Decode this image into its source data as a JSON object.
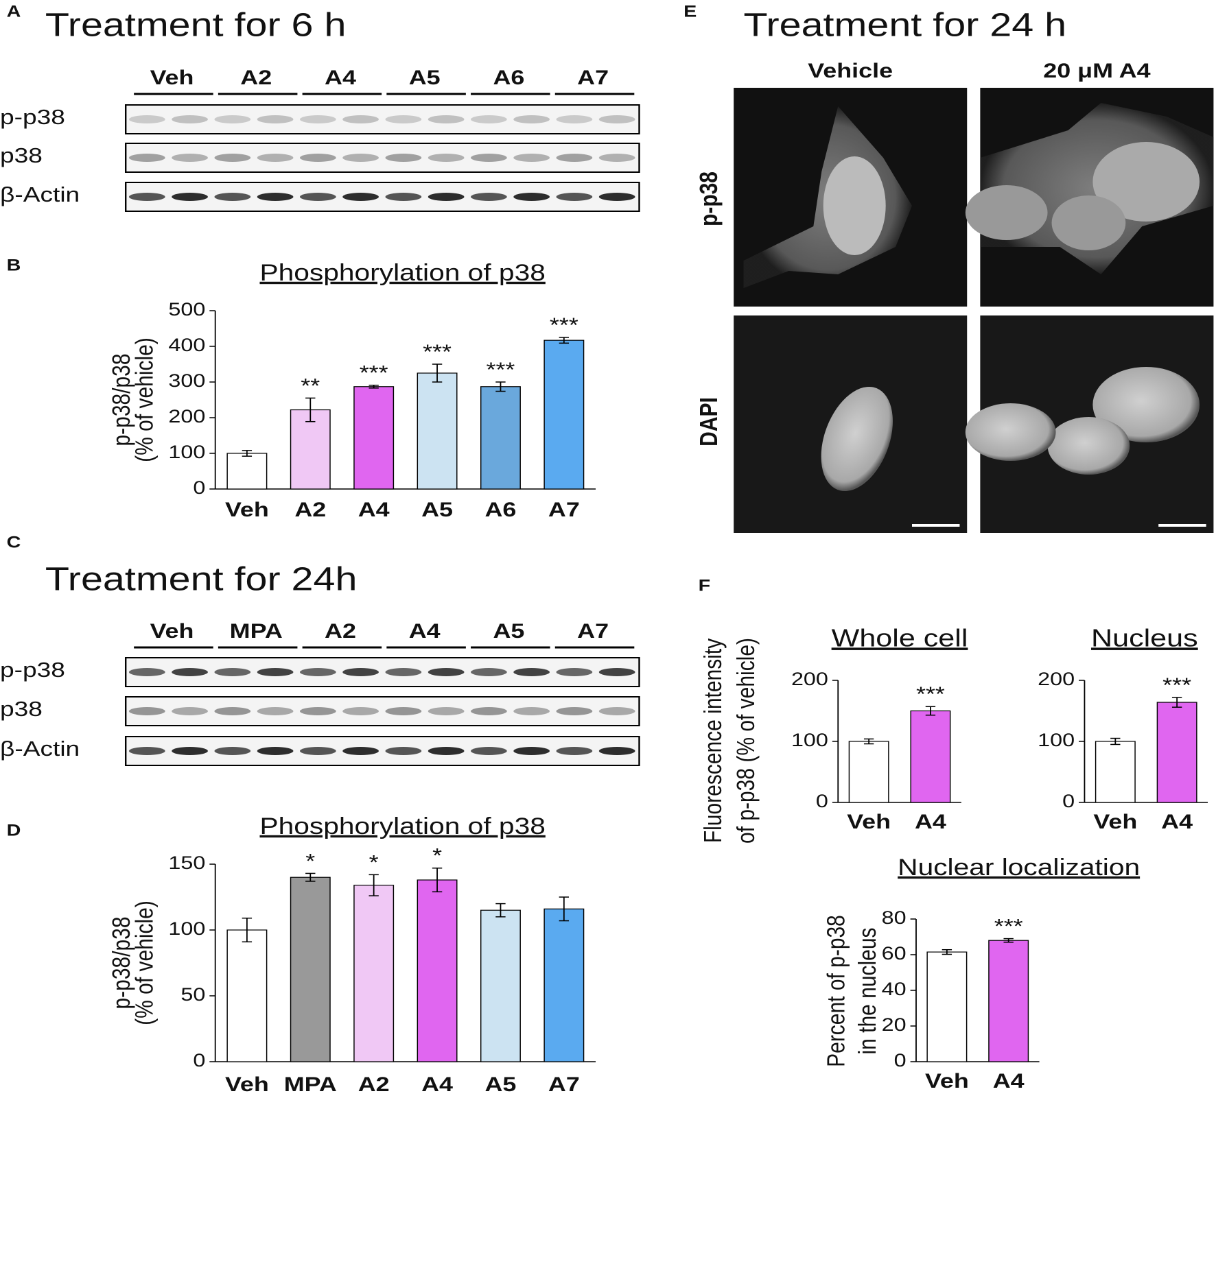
{
  "panel_labels": [
    "A",
    "B",
    "C",
    "D",
    "E",
    "F"
  ],
  "blot_a": {
    "title": "Treatment for 6 h",
    "lanes": [
      "Veh",
      "A2",
      "A4",
      "A5",
      "A6",
      "A7"
    ],
    "rows": [
      "p-p38",
      "p38",
      "β-Actin"
    ]
  },
  "blot_c": {
    "title": "Treatment for 24h",
    "lanes": [
      "Veh",
      "MPA",
      "A2",
      "A4",
      "A5",
      "A7"
    ],
    "rows": [
      "p-p38",
      "p38",
      "β-Actin"
    ]
  },
  "micrographs": {
    "title": "Treatment for 24 h",
    "columns": [
      "Vehicle",
      "20 μM A4"
    ],
    "rows": [
      "p-p38",
      "DAPI"
    ]
  },
  "chart_data": [
    {
      "type": "bar",
      "title": "Phosphorylation of p38",
      "ylabel": [
        "p-p38/p38",
        "(% of vehicle)"
      ],
      "categories": [
        "Veh",
        "A2",
        "A4",
        "A5",
        "A6",
        "A7"
      ],
      "values": [
        100,
        222,
        287,
        325,
        287,
        417
      ],
      "errors": [
        8,
        33,
        4,
        25,
        13,
        8
      ],
      "colors": [
        "#ffffff",
        "#f0c8f5",
        "#e066f0",
        "#cce3f2",
        "#6aa8dc",
        "#5aaaf0"
      ],
      "significance": [
        null,
        "**",
        "***",
        "***",
        "***",
        "***"
      ],
      "ylim": [
        0,
        500
      ],
      "yticks": [
        0,
        100,
        200,
        300,
        400,
        500
      ]
    },
    {
      "type": "bar",
      "title": "Phosphorylation of p38",
      "ylabel": [
        "p-p38/p38",
        "(% of vehicle)"
      ],
      "categories": [
        "Veh",
        "MPA",
        "A2",
        "A4",
        "A5",
        "A7"
      ],
      "values": [
        100,
        140,
        134,
        138,
        115,
        116
      ],
      "errors": [
        9,
        3,
        8,
        9,
        5,
        9
      ],
      "colors": [
        "#ffffff",
        "#999999",
        "#f0c8f5",
        "#e066f0",
        "#cce3f2",
        "#5aaaf0"
      ],
      "significance": [
        null,
        "*",
        "*",
        "*",
        null,
        null
      ],
      "ylim": [
        0,
        150
      ],
      "yticks": [
        0,
        50,
        100,
        150
      ]
    },
    {
      "type": "bar",
      "title": "Whole cell",
      "ylabel": [
        "Fluorescence intensity",
        "of p-p38 (% of vehicle)"
      ],
      "categories": [
        "Veh",
        "A4"
      ],
      "values": [
        100,
        150
      ],
      "errors": [
        4,
        7
      ],
      "colors": [
        "#ffffff",
        "#e066f0"
      ],
      "significance": [
        null,
        "***"
      ],
      "ylim": [
        0,
        200
      ],
      "yticks": [
        0,
        100,
        200
      ]
    },
    {
      "type": "bar",
      "title": "Nucleus",
      "categories": [
        "Veh",
        "A4"
      ],
      "values": [
        100,
        164
      ],
      "errors": [
        5,
        8
      ],
      "colors": [
        "#ffffff",
        "#e066f0"
      ],
      "significance": [
        null,
        "***"
      ],
      "ylim": [
        0,
        200
      ],
      "yticks": [
        0,
        100,
        200
      ]
    },
    {
      "type": "bar",
      "title": "Nuclear localization",
      "ylabel": [
        "Percent of p-p38",
        "in the nucleus"
      ],
      "categories": [
        "Veh",
        "A4"
      ],
      "values": [
        61.5,
        68
      ],
      "errors": [
        1.3,
        1
      ],
      "colors": [
        "#ffffff",
        "#e066f0"
      ],
      "significance": [
        null,
        "***"
      ],
      "ylim": [
        0,
        80
      ],
      "yticks": [
        0,
        20,
        40,
        60,
        80
      ]
    }
  ]
}
